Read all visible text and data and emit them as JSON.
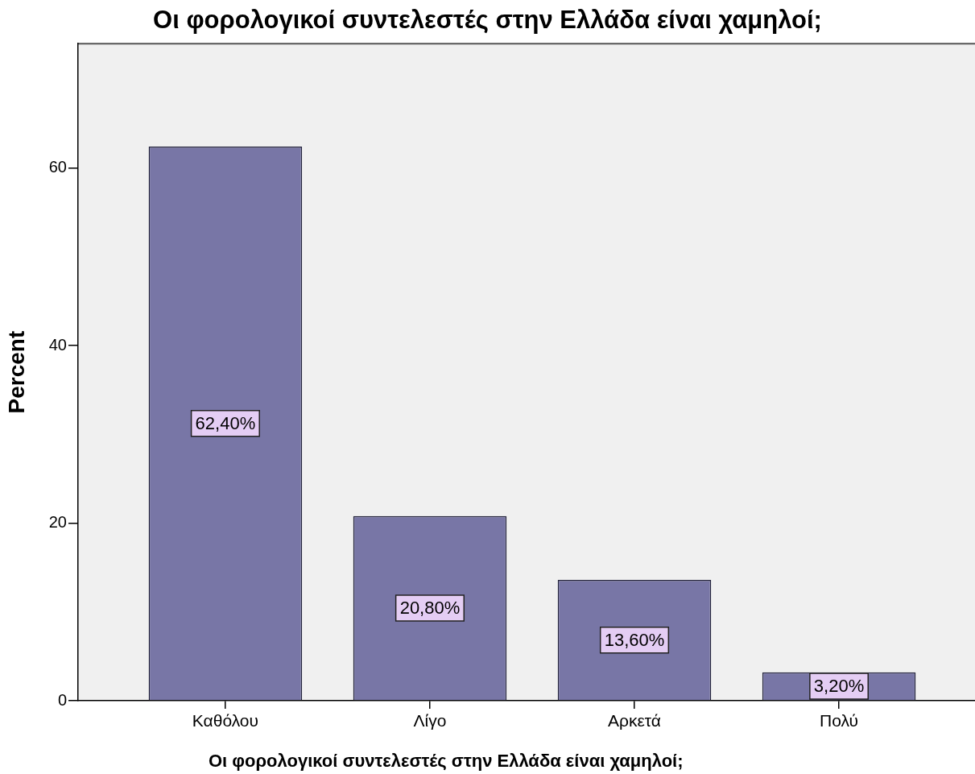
{
  "chart_data": {
    "type": "bar",
    "title": "Οι φορολογικοί συντελεστές στην Ελλάδα είναι χαμηλοί;",
    "xlabel": "Οι φορολογικοί συντελεστές στην Ελλάδα είναι χαμηλοί;",
    "ylabel": "Percent",
    "categories": [
      "Καθόλου",
      "Λίγο",
      "Αρκετά",
      "Πολύ"
    ],
    "values": [
      62.4,
      20.8,
      13.6,
      3.2
    ],
    "value_labels": [
      "62,40%",
      "20,80%",
      "13,60%",
      "3,20%"
    ],
    "color": "#7876a6",
    "ylim": [
      0,
      74
    ],
    "yticks": [
      0,
      20,
      40,
      60
    ],
    "grid": false,
    "legend": false
  }
}
